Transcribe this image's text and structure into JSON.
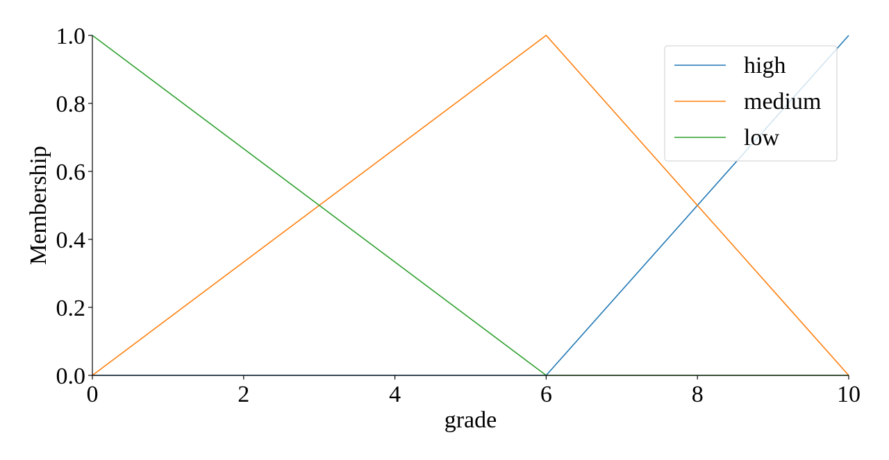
{
  "chart_data": {
    "type": "line",
    "xlabel": "grade",
    "ylabel": "Membership",
    "xlim": [
      0,
      10
    ],
    "ylim": [
      0,
      1
    ],
    "xticks": [
      0,
      2,
      4,
      6,
      8,
      10
    ],
    "yticks": [
      0.0,
      0.2,
      0.4,
      0.6,
      0.8,
      1.0
    ],
    "xtick_labels": [
      "0",
      "2",
      "4",
      "6",
      "8",
      "10"
    ],
    "ytick_labels": [
      "0.0",
      "0.2",
      "0.4",
      "0.6",
      "0.8",
      "1.0"
    ],
    "grid": false,
    "legend_position": "top-right",
    "series": [
      {
        "name": "high",
        "color": "#1f77b4",
        "x": [
          0,
          6,
          10
        ],
        "y": [
          0,
          0,
          1
        ]
      },
      {
        "name": "medium",
        "color": "#ff7f0e",
        "x": [
          0,
          6,
          10
        ],
        "y": [
          0,
          1,
          0
        ]
      },
      {
        "name": "low",
        "color": "#2ca02c",
        "x": [
          0,
          6,
          10
        ],
        "y": [
          1,
          0,
          0
        ]
      }
    ]
  }
}
